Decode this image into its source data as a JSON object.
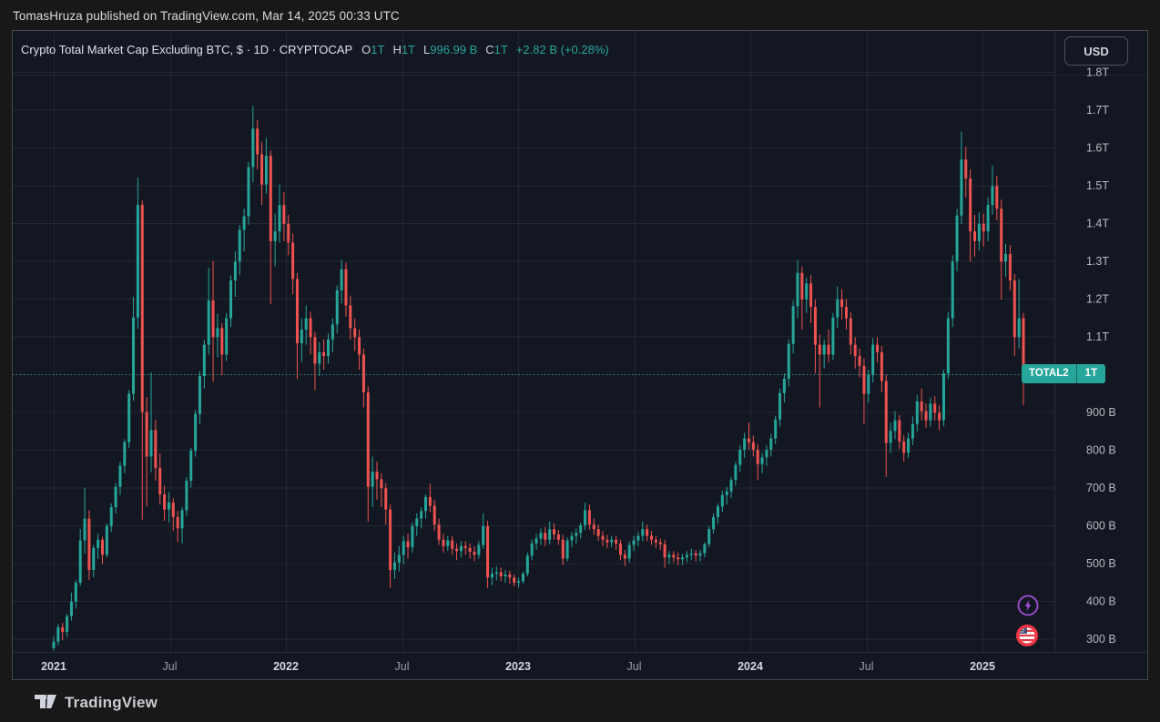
{
  "attribution": "TomasHruza published on TradingView.com, Mar 14, 2025 00:33 UTC",
  "header": {
    "title": "Crypto Total Market Cap Excluding BTC, $ · 1D · CRYPTOCAP",
    "ohlc": {
      "o_label": "O",
      "o": "1T",
      "h_label": "H",
      "h": "1T",
      "l_label": "L",
      "l": "996.99 B",
      "c_label": "C",
      "c": "1T",
      "change": "+2.82 B (+0.28%)"
    },
    "currency_button": "USD"
  },
  "price_label": {
    "symbol": "TOTAL2",
    "price": "1T"
  },
  "footer": {
    "brand": "TradingView"
  },
  "colors": {
    "up": "#26a69a",
    "down": "#ef5350",
    "accent": "#26a69a",
    "panel_bg": "#131722",
    "outer_bg": "#181818",
    "badge_bg": "#26a69a",
    "events_lightning": "#a14fd8",
    "events_flag_ring": "#f23645"
  },
  "icons": [
    "lightning-events-icon",
    "us-flag-events-icon",
    "tradingview-logo"
  ],
  "chart_data": {
    "type": "candlestick",
    "title": "Crypto Total Market Cap Excluding BTC",
    "symbol": "CRYPTOCAP:TOTAL2",
    "currency": "USD",
    "current_price": 1000,
    "current_price_label": "1T",
    "values_unit": "billions USD",
    "bars_are": "weekly OHLC approximation of the displayed daily series, Jan 2021 - Mar 2025",
    "ylim": [
      265,
      1910
    ],
    "grid": true,
    "y_ticks": [
      {
        "label": "1.8T",
        "value": 1800
      },
      {
        "label": "1.7T",
        "value": 1700
      },
      {
        "label": "1.6T",
        "value": 1600
      },
      {
        "label": "1.5T",
        "value": 1500
      },
      {
        "label": "1.4T",
        "value": 1400
      },
      {
        "label": "1.3T",
        "value": 1300
      },
      {
        "label": "1.2T",
        "value": 1200
      },
      {
        "label": "1.1T",
        "value": 1100
      },
      {
        "label": "1T",
        "value": 1000,
        "badge": true
      },
      {
        "label": "900 B",
        "value": 900
      },
      {
        "label": "800 B",
        "value": 800
      },
      {
        "label": "700 B",
        "value": 700
      },
      {
        "label": "600 B",
        "value": 600
      },
      {
        "label": "500 B",
        "value": 500
      },
      {
        "label": "400 B",
        "value": 400
      },
      {
        "label": "300 B",
        "value": 300
      }
    ],
    "x_ticks": [
      {
        "label": "2021",
        "yf": 0,
        "major": true
      },
      {
        "label": "Jul",
        "yf": 0.5,
        "major": false
      },
      {
        "label": "2022",
        "yf": 1,
        "major": true
      },
      {
        "label": "Jul",
        "yf": 1.5,
        "major": false
      },
      {
        "label": "2023",
        "yf": 2,
        "major": true
      },
      {
        "label": "Jul",
        "yf": 2.5,
        "major": false
      },
      {
        "label": "2024",
        "yf": 3,
        "major": true
      },
      {
        "label": "Jul",
        "yf": 3.5,
        "major": false
      },
      {
        "label": "2025",
        "yf": 4,
        "major": true
      }
    ],
    "candles": [
      [
        275,
        305,
        268,
        292
      ],
      [
        292,
        338,
        282,
        330
      ],
      [
        330,
        342,
        296,
        318
      ],
      [
        318,
        365,
        305,
        360
      ],
      [
        360,
        422,
        348,
        398
      ],
      [
        398,
        455,
        380,
        448
      ],
      [
        448,
        590,
        440,
        560
      ],
      [
        560,
        700,
        525,
        618
      ],
      [
        618,
        640,
        455,
        482
      ],
      [
        482,
        548,
        462,
        540
      ],
      [
        540,
        578,
        512,
        562
      ],
      [
        562,
        570,
        498,
        522
      ],
      [
        522,
        605,
        515,
        598
      ],
      [
        598,
        658,
        582,
        648
      ],
      [
        648,
        712,
        632,
        702
      ],
      [
        702,
        768,
        680,
        758
      ],
      [
        758,
        828,
        738,
        820
      ],
      [
        820,
        958,
        805,
        948
      ],
      [
        948,
        1205,
        930,
        1150
      ],
      [
        1150,
        1520,
        1120,
        1448
      ],
      [
        1448,
        1460,
        615,
        900
      ],
      [
        900,
        940,
        650,
        782
      ],
      [
        782,
        1005,
        740,
        852
      ],
      [
        852,
        880,
        718,
        752
      ],
      [
        752,
        790,
        655,
        682
      ],
      [
        682,
        705,
        612,
        642
      ],
      [
        642,
        688,
        608,
        660
      ],
      [
        660,
        672,
        585,
        622
      ],
      [
        622,
        638,
        556,
        592
      ],
      [
        592,
        648,
        552,
        640
      ],
      [
        640,
        728,
        625,
        718
      ],
      [
        718,
        805,
        700,
        798
      ],
      [
        798,
        905,
        782,
        895
      ],
      [
        895,
        1008,
        868,
        995
      ],
      [
        995,
        1090,
        962,
        1078
      ],
      [
        1078,
        1282,
        1052,
        1195
      ],
      [
        1195,
        1300,
        980,
        1098
      ],
      [
        1098,
        1160,
        1045,
        1122
      ],
      [
        1122,
        1135,
        998,
        1052
      ],
      [
        1052,
        1162,
        1035,
        1148
      ],
      [
        1148,
        1262,
        1125,
        1248
      ],
      [
        1248,
        1325,
        1205,
        1298
      ],
      [
        1298,
        1395,
        1262,
        1382
      ],
      [
        1382,
        1438,
        1325,
        1418
      ],
      [
        1418,
        1562,
        1395,
        1548
      ],
      [
        1548,
        1710,
        1508,
        1650
      ],
      [
        1650,
        1672,
        1542,
        1582
      ],
      [
        1582,
        1615,
        1448,
        1502
      ],
      [
        1502,
        1625,
        1478,
        1578
      ],
      [
        1578,
        1592,
        1185,
        1352
      ],
      [
        1352,
        1425,
        1285,
        1378
      ],
      [
        1378,
        1502,
        1348,
        1448
      ],
      [
        1448,
        1482,
        1352,
        1398
      ],
      [
        1398,
        1422,
        1315,
        1348
      ],
      [
        1348,
        1372,
        1212,
        1252
      ],
      [
        1252,
        1268,
        988,
        1082
      ],
      [
        1082,
        1148,
        1032,
        1118
      ],
      [
        1118,
        1182,
        1078,
        1148
      ],
      [
        1148,
        1165,
        1052,
        1098
      ],
      [
        1098,
        1112,
        958,
        1028
      ],
      [
        1028,
        1085,
        995,
        1058
      ],
      [
        1058,
        1092,
        1012,
        1048
      ],
      [
        1048,
        1108,
        1028,
        1092
      ],
      [
        1092,
        1148,
        1058,
        1132
      ],
      [
        1132,
        1235,
        1108,
        1222
      ],
      [
        1222,
        1302,
        1188,
        1278
      ],
      [
        1278,
        1295,
        1152,
        1182
      ],
      [
        1182,
        1208,
        1092,
        1122
      ],
      [
        1122,
        1148,
        1062,
        1098
      ],
      [
        1098,
        1118,
        1012,
        1052
      ],
      [
        1052,
        1068,
        912,
        952
      ],
      [
        952,
        968,
        610,
        702
      ],
      [
        702,
        782,
        648,
        742
      ],
      [
        742,
        768,
        668,
        722
      ],
      [
        722,
        738,
        648,
        698
      ],
      [
        698,
        712,
        602,
        642
      ],
      [
        642,
        655,
        435,
        482
      ],
      [
        482,
        528,
        458,
        502
      ],
      [
        502,
        545,
        478,
        522
      ],
      [
        522,
        572,
        498,
        558
      ],
      [
        558,
        578,
        512,
        542
      ],
      [
        542,
        608,
        528,
        598
      ],
      [
        598,
        632,
        572,
        618
      ],
      [
        618,
        648,
        592,
        638
      ],
      [
        638,
        682,
        618,
        675
      ],
      [
        675,
        710,
        635,
        652
      ],
      [
        652,
        668,
        585,
        602
      ],
      [
        602,
        618,
        548,
        562
      ],
      [
        562,
        578,
        528,
        545
      ],
      [
        545,
        572,
        532,
        560
      ],
      [
        560,
        572,
        522,
        538
      ],
      [
        538,
        552,
        508,
        532
      ],
      [
        532,
        558,
        515,
        545
      ],
      [
        545,
        558,
        522,
        540
      ],
      [
        540,
        552,
        512,
        530
      ],
      [
        530,
        545,
        505,
        522
      ],
      [
        522,
        558,
        512,
        548
      ],
      [
        548,
        632,
        538,
        598
      ],
      [
        598,
        612,
        434,
        462
      ],
      [
        462,
        488,
        442,
        472
      ],
      [
        472,
        492,
        455,
        476
      ],
      [
        476,
        488,
        452,
        465
      ],
      [
        465,
        482,
        448,
        470
      ],
      [
        470,
        480,
        445,
        462
      ],
      [
        462,
        470,
        438,
        448
      ],
      [
        448,
        462,
        435,
        452
      ],
      [
        452,
        478,
        445,
        472
      ],
      [
        472,
        528,
        465,
        520
      ],
      [
        520,
        562,
        508,
        552
      ],
      [
        552,
        578,
        535,
        565
      ],
      [
        565,
        592,
        548,
        580
      ],
      [
        580,
        595,
        545,
        562
      ],
      [
        562,
        610,
        550,
        590
      ],
      [
        590,
        605,
        562,
        576
      ],
      [
        576,
        588,
        548,
        562
      ],
      [
        562,
        575,
        495,
        512
      ],
      [
        512,
        568,
        505,
        560
      ],
      [
        560,
        582,
        542,
        572
      ],
      [
        572,
        592,
        552,
        580
      ],
      [
        580,
        608,
        565,
        600
      ],
      [
        600,
        660,
        588,
        640
      ],
      [
        640,
        655,
        588,
        602
      ],
      [
        602,
        618,
        575,
        590
      ],
      [
        590,
        602,
        558,
        572
      ],
      [
        572,
        585,
        545,
        562
      ],
      [
        562,
        575,
        540,
        555
      ],
      [
        555,
        572,
        542,
        562
      ],
      [
        562,
        572,
        535,
        552
      ],
      [
        552,
        562,
        508,
        522
      ],
      [
        522,
        535,
        492,
        512
      ],
      [
        512,
        558,
        502,
        548
      ],
      [
        548,
        572,
        532,
        560
      ],
      [
        560,
        582,
        545,
        572
      ],
      [
        572,
        610,
        558,
        590
      ],
      [
        590,
        602,
        558,
        572
      ],
      [
        572,
        585,
        548,
        562
      ],
      [
        562,
        572,
        540,
        555
      ],
      [
        555,
        565,
        535,
        550
      ],
      [
        550,
        562,
        488,
        515
      ],
      [
        515,
        532,
        498,
        522
      ],
      [
        522,
        532,
        502,
        515
      ],
      [
        515,
        528,
        495,
        510
      ],
      [
        510,
        525,
        495,
        515
      ],
      [
        515,
        532,
        502,
        522
      ],
      [
        522,
        538,
        508,
        526
      ],
      [
        526,
        535,
        505,
        520
      ],
      [
        520,
        535,
        505,
        526
      ],
      [
        526,
        555,
        515,
        550
      ],
      [
        550,
        598,
        542,
        590
      ],
      [
        590,
        632,
        578,
        622
      ],
      [
        622,
        658,
        605,
        650
      ],
      [
        650,
        692,
        635,
        680
      ],
      [
        680,
        702,
        655,
        690
      ],
      [
        690,
        728,
        672,
        720
      ],
      [
        720,
        768,
        705,
        760
      ],
      [
        760,
        812,
        742,
        800
      ],
      [
        800,
        845,
        778,
        830
      ],
      [
        830,
        872,
        800,
        820
      ],
      [
        820,
        838,
        782,
        800
      ],
      [
        800,
        815,
        720,
        762
      ],
      [
        762,
        792,
        738,
        780
      ],
      [
        780,
        812,
        758,
        800
      ],
      [
        800,
        842,
        782,
        830
      ],
      [
        830,
        890,
        815,
        880
      ],
      [
        880,
        962,
        862,
        950
      ],
      [
        950,
        1002,
        925,
        988
      ],
      [
        988,
        1092,
        968,
        1080
      ],
      [
        1080,
        1195,
        1055,
        1180
      ],
      [
        1180,
        1302,
        1148,
        1268
      ],
      [
        1268,
        1285,
        1118,
        1198
      ],
      [
        1198,
        1255,
        1162,
        1240
      ],
      [
        1240,
        1262,
        1135,
        1178
      ],
      [
        1178,
        1198,
        1002,
        1078
      ],
      [
        1078,
        1105,
        912,
        1052
      ],
      [
        1052,
        1092,
        1015,
        1078
      ],
      [
        1078,
        1118,
        1032,
        1052
      ],
      [
        1052,
        1162,
        1038,
        1150
      ],
      [
        1150,
        1232,
        1122,
        1198
      ],
      [
        1198,
        1225,
        1145,
        1178
      ],
      [
        1178,
        1198,
        1118,
        1148
      ],
      [
        1148,
        1165,
        1052,
        1078
      ],
      [
        1078,
        1098,
        1015,
        1048
      ],
      [
        1048,
        1068,
        992,
        1022
      ],
      [
        1022,
        1042,
        868,
        948
      ],
      [
        948,
        1012,
        925,
        998
      ],
      [
        998,
        1095,
        978,
        1078
      ],
      [
        1078,
        1098,
        1032,
        1058
      ],
      [
        1058,
        1075,
        952,
        982
      ],
      [
        982,
        998,
        728,
        818
      ],
      [
        818,
        872,
        792,
        850
      ],
      [
        850,
        902,
        828,
        878
      ],
      [
        878,
        892,
        802,
        822
      ],
      [
        822,
        838,
        768,
        792
      ],
      [
        792,
        845,
        778,
        830
      ],
      [
        830,
        888,
        812,
        868
      ],
      [
        868,
        945,
        848,
        928
      ],
      [
        928,
        962,
        878,
        902
      ],
      [
        902,
        922,
        858,
        878
      ],
      [
        878,
        938,
        862,
        922
      ],
      [
        922,
        942,
        878,
        898
      ],
      [
        898,
        918,
        852,
        878
      ],
      [
        878,
        1012,
        862,
        1002
      ],
      [
        1002,
        1165,
        988,
        1148
      ],
      [
        1148,
        1315,
        1125,
        1298
      ],
      [
        1298,
        1438,
        1272,
        1420
      ],
      [
        1420,
        1642,
        1398,
        1568
      ],
      [
        1568,
        1602,
        1468,
        1518
      ],
      [
        1518,
        1542,
        1298,
        1378
      ],
      [
        1378,
        1422,
        1312,
        1352
      ],
      [
        1352,
        1428,
        1328,
        1398
      ],
      [
        1398,
        1425,
        1338,
        1378
      ],
      [
        1378,
        1468,
        1352,
        1448
      ],
      [
        1448,
        1552,
        1422,
        1498
      ],
      [
        1498,
        1525,
        1408,
        1438
      ],
      [
        1438,
        1462,
        1198,
        1298
      ],
      [
        1298,
        1345,
        1258,
        1318
      ],
      [
        1318,
        1342,
        1222,
        1248
      ],
      [
        1248,
        1265,
        1048,
        1098
      ],
      [
        1098,
        1252,
        1068,
        1148
      ],
      [
        1148,
        1162,
        918,
        1000
      ]
    ]
  }
}
